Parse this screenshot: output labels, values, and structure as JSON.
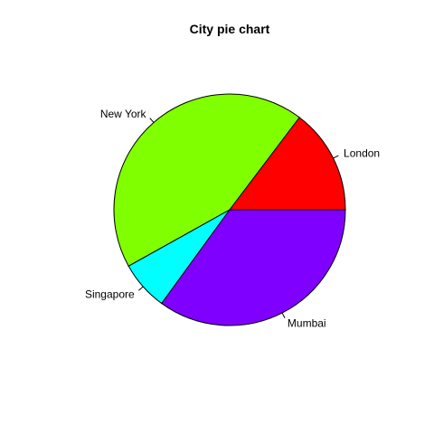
{
  "chart_data": {
    "type": "pie",
    "title": "City pie chart",
    "start_angle_deg": 0,
    "direction": "counterclockwise",
    "slices": [
      {
        "label": "London",
        "value": 14.7,
        "color": "#FF0000"
      },
      {
        "label": "New York",
        "value": 43.4,
        "color": "#80FF00"
      },
      {
        "label": "Singapore",
        "value": 6.9,
        "color": "#00FFFF"
      },
      {
        "label": "Mumbai",
        "value": 35.0,
        "color": "#8000FF"
      }
    ]
  }
}
